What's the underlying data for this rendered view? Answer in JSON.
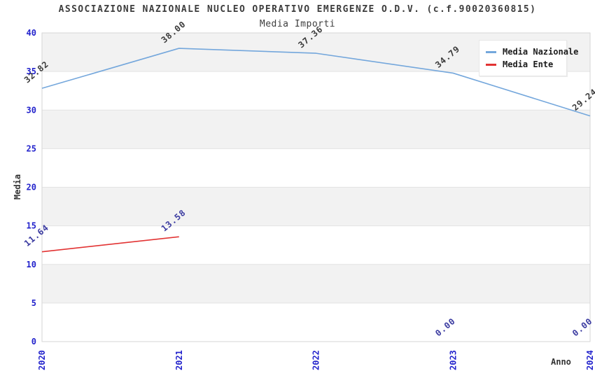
{
  "chart_data": {
    "type": "line",
    "title": "ASSOCIAZIONE NAZIONALE NUCLEO OPERATIVO EMERGENZE O.D.V. (c.f.90020360815)",
    "subtitle": "Media Importi",
    "xlabel": "Anno",
    "ylabel": "Media",
    "categories": [
      "2020",
      "2021",
      "2022",
      "2023",
      "2024"
    ],
    "ylim": [
      0,
      40
    ],
    "ytick_step": 5,
    "yticks": [
      "0",
      "5",
      "10",
      "15",
      "20",
      "25",
      "30",
      "35",
      "40"
    ],
    "grid": "horizontal-bands",
    "legend_position": "top-right",
    "colors": {
      "band_gray": "#f2f2f2",
      "band_white": "#ffffff",
      "grid_line": "#e3e3e3",
      "plot_border": "#d6d6d6",
      "axis_tick_label": "#2323cc",
      "title_text": "#3d3d3d"
    },
    "series": [
      {
        "name": "Media Nazionale",
        "color": "#74a7dc",
        "label_color": "#3a3a3a",
        "points": [
          {
            "category": "2020",
            "value": 32.82,
            "label": "32.82",
            "on_line": true
          },
          {
            "category": "2021",
            "value": 38.0,
            "label": "38.00",
            "on_line": true
          },
          {
            "category": "2022",
            "value": 37.36,
            "label": "37.36",
            "on_line": true
          },
          {
            "category": "2023",
            "value": 34.79,
            "label": "34.79",
            "on_line": true
          },
          {
            "category": "2024",
            "value": 29.24,
            "label": "29.24",
            "on_line": true
          }
        ]
      },
      {
        "name": "Media Ente",
        "color": "#e23333",
        "label_color": "#3a3aa0",
        "points": [
          {
            "category": "2020",
            "value": 11.64,
            "label": "11.64",
            "on_line": true
          },
          {
            "category": "2021",
            "value": 13.58,
            "label": "13.58",
            "on_line": true
          },
          {
            "category": "2023",
            "value": 0.0,
            "label": "0.00",
            "on_line": false
          },
          {
            "category": "2024",
            "value": 0.0,
            "label": "0.00",
            "on_line": false
          }
        ]
      }
    ]
  }
}
